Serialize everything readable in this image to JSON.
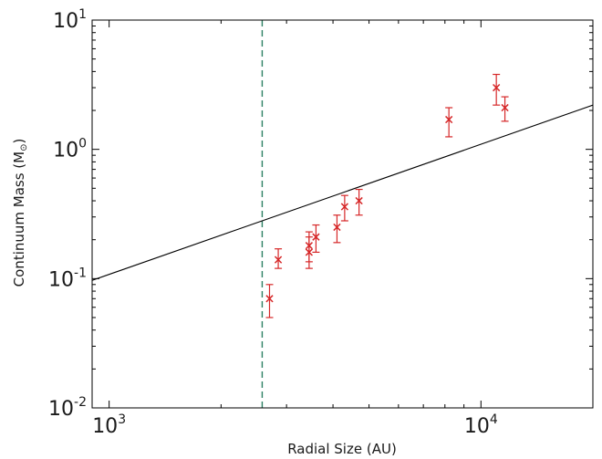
{
  "chart_data": {
    "type": "scatter",
    "xlabel": "Radial Size (AU)",
    "ylabel": "Continuum Mass (M",
    "ylabel_unit_symbol": "⊙",
    "xscale": "log",
    "yscale": "log",
    "xlim": [
      900,
      20000
    ],
    "ylim": [
      0.01,
      10
    ],
    "x_ticks": [
      {
        "base": "10",
        "exp": "3",
        "value": 1000
      },
      {
        "base": "10",
        "exp": "4",
        "value": 10000
      }
    ],
    "y_ticks": [
      {
        "base": "10",
        "exp": "-2",
        "value": 0.01
      },
      {
        "base": "10",
        "exp": "-1",
        "value": 0.1
      },
      {
        "base": "10",
        "exp": "0",
        "value": 1
      },
      {
        "base": "10",
        "exp": "1",
        "value": 10
      }
    ],
    "grid": false,
    "points": [
      {
        "x": 2700,
        "y": 0.07,
        "ylo": 0.05,
        "yhi": 0.09
      },
      {
        "x": 2850,
        "y": 0.14,
        "ylo": 0.12,
        "yhi": 0.17
      },
      {
        "x": 3450,
        "y": 0.16,
        "ylo": 0.12,
        "yhi": 0.21
      },
      {
        "x": 3450,
        "y": 0.18,
        "ylo": 0.135,
        "yhi": 0.23
      },
      {
        "x": 3600,
        "y": 0.21,
        "ylo": 0.16,
        "yhi": 0.26
      },
      {
        "x": 4100,
        "y": 0.25,
        "ylo": 0.19,
        "yhi": 0.31
      },
      {
        "x": 4300,
        "y": 0.36,
        "ylo": 0.28,
        "yhi": 0.44
      },
      {
        "x": 4700,
        "y": 0.4,
        "ylo": 0.31,
        "yhi": 0.49
      },
      {
        "x": 8200,
        "y": 1.7,
        "ylo": 1.25,
        "yhi": 2.1
      },
      {
        "x": 11000,
        "y": 3.0,
        "ylo": 2.2,
        "yhi": 3.8
      },
      {
        "x": 11600,
        "y": 2.1,
        "ylo": 1.65,
        "yhi": 2.55
      }
    ],
    "fit_line": {
      "x": [
        900,
        20000
      ],
      "y": [
        0.097,
        2.2
      ]
    },
    "vline": {
      "x": 2580
    },
    "colors": {
      "points": "#d62728",
      "fit_line": "#000000",
      "vline": "#2a7f62",
      "axes": "#000000"
    }
  }
}
